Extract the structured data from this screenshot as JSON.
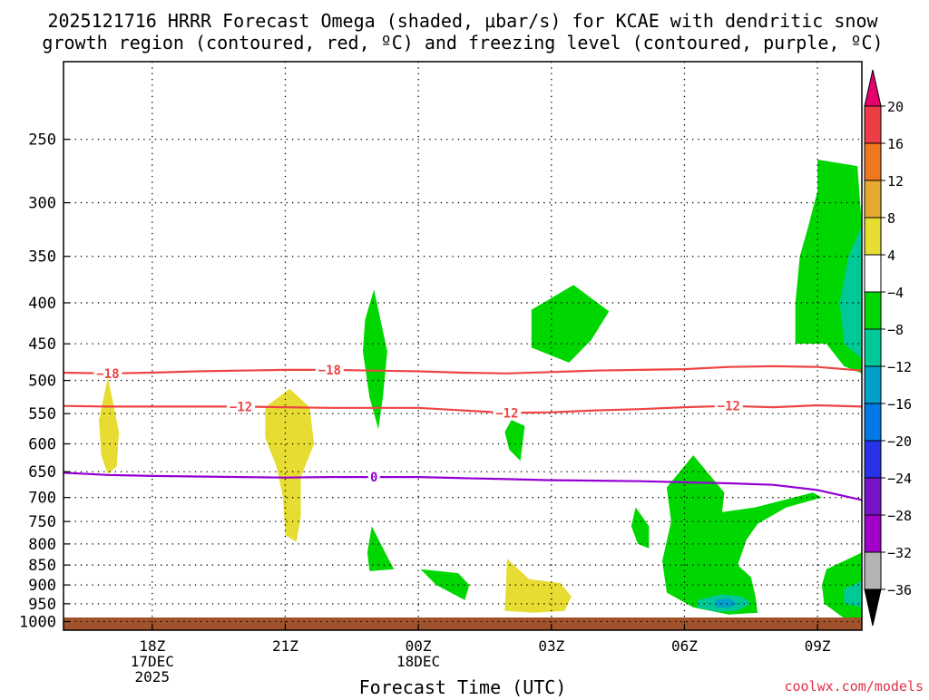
{
  "title": {
    "line1": "2025121716 HRRR Forecast Omega (shaded, μbar/s) for KCAE with dendritic snow",
    "line2": "growth region (contoured, red, ºC) and freezing level (contoured, purple, ºC)"
  },
  "credit": "coolwx.com/models",
  "chart_data": {
    "type": "contour",
    "title": "2025121716 HRRR Forecast Omega (shaded, μbar/s) for KCAE with dendritic snow growth region (contoured, red, ºC) and freezing level (contoured, purple, ºC)",
    "xlabel": "Forecast Time (UTC)",
    "ylabel": "",
    "xlim": [
      16,
      34
    ],
    "ylim": [
      1025,
      200
    ],
    "y_scale": "log-pressure",
    "x_ticks": [
      {
        "x": 18,
        "lines": [
          "18Z",
          "17DEC",
          "2025"
        ]
      },
      {
        "x": 21,
        "lines": [
          "21Z"
        ]
      },
      {
        "x": 24,
        "lines": [
          "00Z",
          "18DEC"
        ]
      },
      {
        "x": 27,
        "lines": [
          "03Z"
        ]
      },
      {
        "x": 30,
        "lines": [
          "06Z"
        ]
      },
      {
        "x": 33,
        "lines": [
          "09Z"
        ]
      }
    ],
    "y_ticks": [
      250,
      300,
      350,
      400,
      450,
      500,
      550,
      600,
      650,
      700,
      750,
      800,
      850,
      900,
      950,
      1000
    ],
    "grid": true,
    "surface_color": "#a0522d",
    "colorbar": {
      "levels": [
        "20",
        "16",
        "12",
        "8",
        "4",
        "−4",
        "−8",
        "−12",
        "−16",
        "−20",
        "−24",
        "−28",
        "−32",
        "−36"
      ],
      "colors": [
        "#e6006e",
        "#ee3c46",
        "#ee7820",
        "#e6aa32",
        "#e6dc32",
        "#ffffff",
        "#00d700",
        "#00c896",
        "#00a0c8",
        "#0078e6",
        "#2832e6",
        "#7814c8",
        "#a000c8",
        "#b4b4b4",
        "#000000"
      ]
    },
    "contours": [
      {
        "name": "dendritic-upper",
        "label": "−18",
        "color": "#ee4444",
        "points": [
          [
            16,
            489
          ],
          [
            17,
            490
          ],
          [
            18,
            489
          ],
          [
            19,
            487
          ],
          [
            20,
            486
          ],
          [
            21,
            485
          ],
          [
            22,
            485
          ],
          [
            23,
            486
          ],
          [
            24,
            487
          ],
          [
            25,
            489
          ],
          [
            26,
            490
          ],
          [
            27,
            488
          ],
          [
            28,
            486
          ],
          [
            29,
            485
          ],
          [
            30,
            484
          ],
          [
            31,
            481
          ],
          [
            32,
            480
          ],
          [
            33,
            481
          ],
          [
            34,
            486
          ]
        ],
        "label_x": [
          17,
          22
        ]
      },
      {
        "name": "dendritic-lower",
        "label": "−12",
        "color": "#ee4444",
        "points": [
          [
            16,
            538
          ],
          [
            17,
            539
          ],
          [
            18,
            539
          ],
          [
            19,
            539
          ],
          [
            20,
            539
          ],
          [
            21,
            540
          ],
          [
            22,
            541
          ],
          [
            23,
            541
          ],
          [
            24,
            541
          ],
          [
            25,
            545
          ],
          [
            26,
            549
          ],
          [
            27,
            548
          ],
          [
            28,
            545
          ],
          [
            29,
            543
          ],
          [
            30,
            540
          ],
          [
            31,
            538
          ],
          [
            32,
            540
          ],
          [
            33,
            537
          ],
          [
            34,
            539
          ]
        ],
        "label_x": [
          20,
          26,
          31
        ]
      },
      {
        "name": "freezing-level",
        "label": "0",
        "color": "#9400d3",
        "points": [
          [
            16,
            652
          ],
          [
            17,
            656
          ],
          [
            18,
            658
          ],
          [
            19,
            659
          ],
          [
            20,
            660
          ],
          [
            21,
            661
          ],
          [
            22,
            660
          ],
          [
            23,
            660
          ],
          [
            24,
            660
          ],
          [
            25,
            662
          ],
          [
            26,
            664
          ],
          [
            27,
            666
          ],
          [
            28,
            667
          ],
          [
            29,
            668
          ],
          [
            30,
            670
          ],
          [
            31,
            672
          ],
          [
            32,
            675
          ],
          [
            33,
            685
          ],
          [
            34,
            705
          ]
        ],
        "label_x": [
          23
        ]
      }
    ],
    "omega_regions": [
      {
        "value": 4,
        "color": "#e6dc32",
        "points": [
          [
            17,
            495
          ],
          [
            17.25,
            580
          ],
          [
            17.2,
            640
          ],
          [
            17.0,
            655
          ],
          [
            16.85,
            620
          ],
          [
            16.8,
            560
          ]
        ]
      },
      {
        "value": 4,
        "color": "#e6dc32",
        "points": [
          [
            21.1,
            512
          ],
          [
            21.55,
            540
          ],
          [
            21.65,
            600
          ],
          [
            21.35,
            660
          ],
          [
            21.35,
            740
          ],
          [
            21.25,
            795
          ],
          [
            21.0,
            780
          ],
          [
            20.95,
            700
          ],
          [
            20.8,
            640
          ],
          [
            20.55,
            590
          ],
          [
            20.55,
            540
          ]
        ]
      },
      {
        "value": 4,
        "color": "#e6dc32",
        "points": [
          [
            26.0,
            835
          ],
          [
            26.5,
            885
          ],
          [
            27.2,
            895
          ],
          [
            27.45,
            930
          ],
          [
            27.3,
            970
          ],
          [
            26.6,
            975
          ],
          [
            25.95,
            970
          ]
        ]
      },
      {
        "value": -4,
        "color": "#00d700",
        "points": [
          [
            23.0,
            385
          ],
          [
            23.3,
            460
          ],
          [
            23.2,
            525
          ],
          [
            23.1,
            575
          ],
          [
            22.9,
            525
          ],
          [
            22.75,
            460
          ],
          [
            22.8,
            420
          ]
        ]
      },
      {
        "value": -4,
        "color": "#00d700",
        "points": [
          [
            22.95,
            760
          ],
          [
            23.3,
            830
          ],
          [
            23.45,
            860
          ],
          [
            22.9,
            865
          ],
          [
            22.85,
            820
          ]
        ]
      },
      {
        "value": -4,
        "color": "#00d700",
        "points": [
          [
            24.05,
            860
          ],
          [
            24.9,
            870
          ],
          [
            25.15,
            900
          ],
          [
            25.05,
            940
          ],
          [
            24.4,
            900
          ]
        ]
      },
      {
        "value": -4,
        "color": "#00d700",
        "points": [
          [
            26.1,
            560
          ],
          [
            26.4,
            570
          ],
          [
            26.3,
            630
          ],
          [
            26.05,
            610
          ],
          [
            25.95,
            580
          ]
        ]
      },
      {
        "value": -4,
        "color": "#00d700",
        "points": [
          [
            26.55,
            408
          ],
          [
            27.5,
            380
          ],
          [
            28.3,
            410
          ],
          [
            27.9,
            445
          ],
          [
            27.4,
            475
          ],
          [
            26.55,
            455
          ]
        ]
      },
      {
        "value": -4,
        "color": "#00d700",
        "points": [
          [
            28.9,
            720
          ],
          [
            29.2,
            760
          ],
          [
            29.2,
            810
          ],
          [
            28.95,
            800
          ],
          [
            28.8,
            760
          ]
        ]
      },
      {
        "value": -4,
        "color": "#00d700",
        "points": [
          [
            30.2,
            620
          ],
          [
            30.9,
            690
          ],
          [
            30.85,
            730
          ],
          [
            31.6,
            720
          ],
          [
            32.9,
            690
          ],
          [
            33.1,
            700
          ],
          [
            32.3,
            720
          ],
          [
            31.65,
            755
          ],
          [
            31.4,
            790
          ],
          [
            31.2,
            850
          ],
          [
            31.5,
            880
          ],
          [
            31.6,
            930
          ],
          [
            31.65,
            975
          ],
          [
            31.0,
            980
          ],
          [
            30.2,
            960
          ],
          [
            29.6,
            920
          ],
          [
            29.5,
            840
          ],
          [
            29.7,
            750
          ],
          [
            29.6,
            680
          ]
        ]
      },
      {
        "value": -8,
        "color": "#00c896",
        "points": [
          [
            30.3,
            940
          ],
          [
            30.8,
            925
          ],
          [
            31.3,
            930
          ],
          [
            31.5,
            950
          ],
          [
            31.2,
            970
          ],
          [
            30.7,
            972
          ],
          [
            30.3,
            960
          ]
        ]
      },
      {
        "value": -12,
        "color": "#00a0c8",
        "points": [
          [
            30.7,
            940
          ],
          [
            31.0,
            935
          ],
          [
            31.2,
            950
          ],
          [
            31.0,
            962
          ],
          [
            30.7,
            958
          ]
        ]
      },
      {
        "value": -4,
        "color": "#00d700",
        "points": [
          [
            33.0,
            265
          ],
          [
            33.9,
            270
          ],
          [
            34,
            320
          ],
          [
            34,
            490
          ],
          [
            33.6,
            480
          ],
          [
            33.2,
            450
          ],
          [
            32.5,
            450
          ],
          [
            32.5,
            400
          ],
          [
            32.6,
            350
          ],
          [
            32.8,
            320
          ],
          [
            33.0,
            290
          ]
        ]
      },
      {
        "value": -8,
        "color": "#00c896",
        "points": [
          [
            34,
            320
          ],
          [
            33.7,
            350
          ],
          [
            33.5,
            400
          ],
          [
            33.6,
            450
          ],
          [
            34,
            470
          ]
        ]
      },
      {
        "value": -4,
        "color": "#00d700",
        "points": [
          [
            33.2,
            860
          ],
          [
            33.6,
            840
          ],
          [
            34,
            820
          ],
          [
            34,
            990
          ],
          [
            33.6,
            990
          ],
          [
            33.15,
            950
          ],
          [
            33.1,
            900
          ]
        ]
      },
      {
        "value": -8,
        "color": "#00c896",
        "points": [
          [
            34,
            890
          ],
          [
            33.6,
            910
          ],
          [
            33.6,
            950
          ],
          [
            34,
            960
          ]
        ]
      }
    ]
  }
}
